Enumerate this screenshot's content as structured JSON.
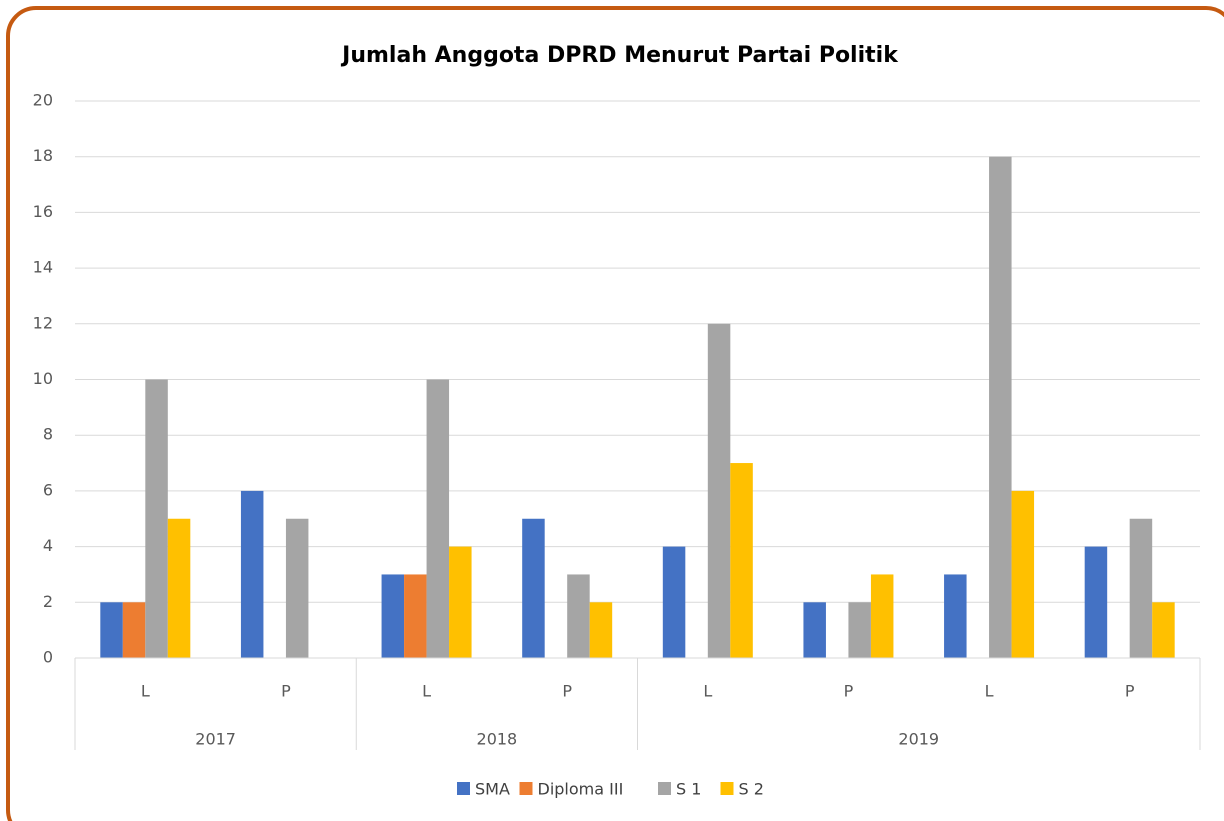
{
  "chart_data": {
    "type": "bar",
    "title": "Jumlah Anggota DPRD Menurut Partai Politik",
    "groups": [
      {
        "name": "2017",
        "categories": [
          "L",
          "P"
        ]
      },
      {
        "name": "2018",
        "categories": [
          "L",
          "P"
        ]
      },
      {
        "name": "2019",
        "categories": [
          "L",
          "P",
          "L",
          "P"
        ]
      }
    ],
    "series": [
      {
        "name": "SMA",
        "color": "#4472c4",
        "values": [
          2,
          6,
          3,
          5,
          4,
          2,
          3,
          4
        ]
      },
      {
        "name": "Diploma III",
        "color": "#ed7d31",
        "values": [
          2,
          null,
          3,
          null,
          null,
          null,
          null,
          null
        ]
      },
      {
        "name": "S 1",
        "color": "#a5a5a5",
        "values": [
          10,
          5,
          10,
          3,
          12,
          2,
          18,
          5
        ]
      },
      {
        "name": "S 2",
        "color": "#ffc000",
        "values": [
          5,
          null,
          4,
          2,
          7,
          3,
          6,
          2
        ]
      }
    ],
    "ylim": [
      0,
      20
    ],
    "yticks": [
      0,
      2,
      4,
      6,
      8,
      10,
      12,
      14,
      16,
      18,
      20
    ],
    "grid": true,
    "legend": "bottom"
  }
}
